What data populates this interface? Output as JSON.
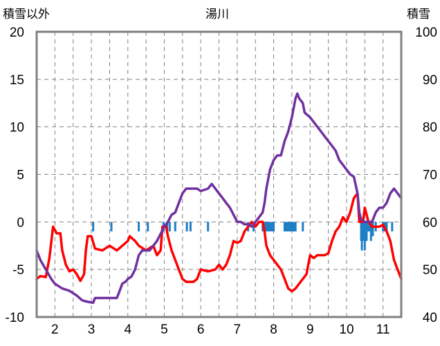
{
  "chart_data": {
    "type": "line",
    "title": "湯川",
    "y_left_label": "積雪以外",
    "y_right_label": "積雪",
    "y_left_range": [
      -10,
      20
    ],
    "y_right_range": [
      40,
      100
    ],
    "y_left_ticks": [
      "20",
      "15",
      "10",
      "5",
      "0",
      "-5",
      "-10"
    ],
    "y_right_ticks": [
      "100",
      "90",
      "80",
      "70",
      "60",
      "50",
      "40"
    ],
    "x_range": [
      1.5,
      11.5
    ],
    "x_ticks": [
      "2",
      "3",
      "4",
      "5",
      "6",
      "7",
      "8",
      "9",
      "10",
      "11"
    ],
    "grid": true,
    "series": [
      {
        "color": "#ff0000",
        "axis": "left",
        "points": [
          [
            1.5,
            -6
          ],
          [
            1.6,
            -5.7
          ],
          [
            1.75,
            -5.8
          ],
          [
            1.85,
            -3.8
          ],
          [
            1.95,
            -0.5
          ],
          [
            2.05,
            -1.2
          ],
          [
            2.15,
            -1.2
          ],
          [
            2.2,
            -3
          ],
          [
            2.3,
            -4.5
          ],
          [
            2.4,
            -5.2
          ],
          [
            2.5,
            -5
          ],
          [
            2.6,
            -5.5
          ],
          [
            2.7,
            -6.2
          ],
          [
            2.8,
            -5.5
          ],
          [
            2.85,
            -3
          ],
          [
            2.9,
            -1.5
          ],
          [
            3,
            -1.5
          ],
          [
            3.1,
            -2.8
          ],
          [
            3.3,
            -3
          ],
          [
            3.5,
            -2.5
          ],
          [
            3.7,
            -3
          ],
          [
            3.85,
            -2.5
          ],
          [
            4,
            -2
          ],
          [
            4.05,
            -1.5
          ],
          [
            4.2,
            -2
          ],
          [
            4.3,
            -2.5
          ],
          [
            4.5,
            -3
          ],
          [
            4.7,
            -2.5
          ],
          [
            4.8,
            -3.5
          ],
          [
            4.9,
            -3
          ],
          [
            4.95,
            -0.5
          ],
          [
            5.05,
            -0.5
          ],
          [
            5.1,
            -1.5
          ],
          [
            5.2,
            -3
          ],
          [
            5.3,
            -4
          ],
          [
            5.4,
            -5
          ],
          [
            5.5,
            -6
          ],
          [
            5.6,
            -6.3
          ],
          [
            5.8,
            -6.3
          ],
          [
            5.9,
            -6
          ],
          [
            6,
            -5
          ],
          [
            6.2,
            -5.2
          ],
          [
            6.4,
            -5
          ],
          [
            6.5,
            -4.5
          ],
          [
            6.6,
            -5
          ],
          [
            6.7,
            -4.5
          ],
          [
            6.8,
            -3.5
          ],
          [
            6.9,
            -2
          ],
          [
            7,
            -2.2
          ],
          [
            7.1,
            -2
          ],
          [
            7.2,
            -1
          ],
          [
            7.3,
            -0.5
          ],
          [
            7.4,
            0
          ],
          [
            7.5,
            -0.5
          ],
          [
            7.6,
            0
          ],
          [
            7.7,
            0
          ],
          [
            7.75,
            -1
          ],
          [
            7.8,
            -2.5
          ],
          [
            7.9,
            -3.5
          ],
          [
            8,
            -4
          ],
          [
            8.1,
            -4.5
          ],
          [
            8.2,
            -5
          ],
          [
            8.3,
            -6
          ],
          [
            8.4,
            -7
          ],
          [
            8.5,
            -7.3
          ],
          [
            8.6,
            -7
          ],
          [
            8.7,
            -6.5
          ],
          [
            8.8,
            -6
          ],
          [
            8.9,
            -5.5
          ],
          [
            8.95,
            -4.5
          ],
          [
            9,
            -3.5
          ],
          [
            9.1,
            -3.8
          ],
          [
            9.2,
            -3.5
          ],
          [
            9.4,
            -3.5
          ],
          [
            9.5,
            -3.3
          ],
          [
            9.6,
            -2
          ],
          [
            9.7,
            -1
          ],
          [
            9.8,
            -0.5
          ],
          [
            9.9,
            0.5
          ],
          [
            10,
            0
          ],
          [
            10.1,
            1
          ],
          [
            10.2,
            2.5
          ],
          [
            10.3,
            3
          ],
          [
            10.35,
            0
          ],
          [
            10.45,
            0
          ],
          [
            10.5,
            1.5
          ],
          [
            10.6,
            0
          ],
          [
            10.7,
            -0.5
          ],
          [
            10.9,
            -0.5
          ],
          [
            11,
            -0.3
          ],
          [
            11.1,
            -1
          ],
          [
            11.2,
            -2
          ],
          [
            11.3,
            -4
          ],
          [
            11.4,
            -5
          ],
          [
            11.5,
            -6
          ]
        ]
      },
      {
        "color": "#7030a0",
        "axis": "right",
        "points": [
          [
            1.5,
            54
          ],
          [
            1.6,
            52
          ],
          [
            1.75,
            50
          ],
          [
            1.9,
            48
          ],
          [
            2,
            47
          ],
          [
            2.2,
            46
          ],
          [
            2.4,
            45.5
          ],
          [
            2.6,
            44.5
          ],
          [
            2.75,
            43.5
          ],
          [
            2.9,
            43.2
          ],
          [
            3.05,
            43
          ],
          [
            3.1,
            44
          ],
          [
            3.2,
            44
          ],
          [
            3.25,
            44
          ],
          [
            3.3,
            44
          ],
          [
            3.45,
            44
          ],
          [
            3.6,
            44
          ],
          [
            3.7,
            44
          ],
          [
            3.75,
            45
          ],
          [
            3.85,
            47
          ],
          [
            3.95,
            47.5
          ],
          [
            4,
            48
          ],
          [
            4.1,
            48.5
          ],
          [
            4.2,
            50
          ],
          [
            4.3,
            53
          ],
          [
            4.4,
            54
          ],
          [
            4.6,
            54
          ],
          [
            4.7,
            55
          ],
          [
            4.8,
            56
          ],
          [
            4.9,
            57.5
          ],
          [
            5,
            59
          ],
          [
            5.1,
            60
          ],
          [
            5.2,
            61.5
          ],
          [
            5.3,
            62
          ],
          [
            5.4,
            64
          ],
          [
            5.5,
            66
          ],
          [
            5.6,
            67
          ],
          [
            5.7,
            67
          ],
          [
            5.8,
            67
          ],
          [
            5.9,
            67
          ],
          [
            6,
            66.5
          ],
          [
            6.2,
            67
          ],
          [
            6.3,
            68
          ],
          [
            6.4,
            67
          ],
          [
            6.5,
            66
          ],
          [
            6.6,
            65
          ],
          [
            6.7,
            64
          ],
          [
            6.8,
            63
          ],
          [
            6.9,
            61.5
          ],
          [
            7,
            60
          ],
          [
            7.1,
            60
          ],
          [
            7.2,
            59.5
          ],
          [
            7.3,
            59.5
          ],
          [
            7.4,
            59
          ],
          [
            7.5,
            60
          ],
          [
            7.6,
            61
          ],
          [
            7.7,
            62
          ],
          [
            7.75,
            64
          ],
          [
            7.8,
            67
          ],
          [
            7.9,
            71
          ],
          [
            8,
            73
          ],
          [
            8.1,
            74
          ],
          [
            8.2,
            74
          ],
          [
            8.3,
            77
          ],
          [
            8.4,
            79
          ],
          [
            8.5,
            82
          ],
          [
            8.6,
            86
          ],
          [
            8.65,
            87
          ],
          [
            8.7,
            86
          ],
          [
            8.8,
            85
          ],
          [
            8.85,
            83
          ],
          [
            9,
            82
          ],
          [
            9.1,
            81
          ],
          [
            9.2,
            80
          ],
          [
            9.3,
            79
          ],
          [
            9.4,
            78
          ],
          [
            9.5,
            77
          ],
          [
            9.6,
            76
          ],
          [
            9.7,
            75
          ],
          [
            9.8,
            73
          ],
          [
            9.9,
            72
          ],
          [
            10,
            71
          ],
          [
            10.1,
            70
          ],
          [
            10.2,
            69.5
          ],
          [
            10.3,
            66
          ],
          [
            10.35,
            62
          ],
          [
            10.4,
            60.5
          ],
          [
            10.5,
            60
          ],
          [
            10.6,
            60
          ],
          [
            10.7,
            60
          ],
          [
            10.8,
            62
          ],
          [
            10.9,
            63
          ],
          [
            11,
            63
          ],
          [
            11.1,
            64
          ],
          [
            11.2,
            66
          ],
          [
            11.3,
            67
          ],
          [
            11.4,
            66
          ],
          [
            11.5,
            65
          ]
        ]
      }
    ],
    "bars": {
      "color": "#1f7fc4",
      "axis": "left",
      "points": [
        [
          3.05,
          -1
        ],
        [
          3.55,
          -1
        ],
        [
          4.3,
          -1
        ],
        [
          4.55,
          -1
        ],
        [
          4.98,
          -1
        ],
        [
          5.08,
          -1
        ],
        [
          5.15,
          -1
        ],
        [
          5.3,
          -1
        ],
        [
          5.62,
          -1
        ],
        [
          5.72,
          -1
        ],
        [
          6.2,
          -1
        ],
        [
          7.3,
          -1
        ],
        [
          7.45,
          -1
        ],
        [
          7.7,
          -1
        ],
        [
          7.75,
          -1
        ],
        [
          7.8,
          -1
        ],
        [
          7.85,
          -1
        ],
        [
          7.9,
          -1
        ],
        [
          7.95,
          -1
        ],
        [
          8,
          -1
        ],
        [
          8.3,
          -1
        ],
        [
          8.35,
          -1
        ],
        [
          8.4,
          -1
        ],
        [
          8.45,
          -1
        ],
        [
          8.5,
          -1
        ],
        [
          8.55,
          -1
        ],
        [
          8.6,
          -1
        ],
        [
          8.8,
          -1
        ],
        [
          10.4,
          -2
        ],
        [
          10.42,
          -3
        ],
        [
          10.45,
          -2
        ],
        [
          10.5,
          -3
        ],
        [
          10.55,
          -2
        ],
        [
          10.58,
          -1
        ],
        [
          10.62,
          -1
        ],
        [
          10.67,
          -2
        ],
        [
          10.72,
          -1.5
        ],
        [
          10.8,
          -1
        ],
        [
          11.0,
          -1
        ],
        [
          11.05,
          -1
        ],
        [
          11.1,
          -1
        ],
        [
          11.25,
          -1
        ]
      ]
    }
  }
}
